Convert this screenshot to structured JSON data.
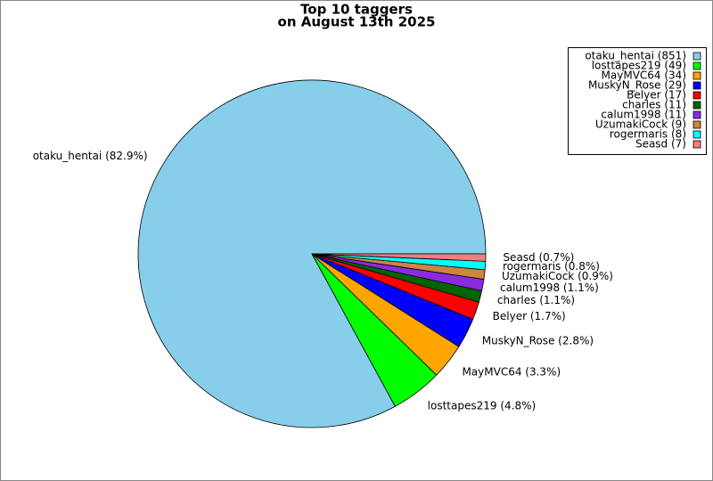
{
  "chart_data": {
    "type": "pie",
    "title": "Top 10 taggers",
    "subtitle": "on August 13th 2025",
    "categories": [
      "otaku_hentai",
      "losttapes219",
      "MayMVC64",
      "MuskyN_Rose",
      "Belyer",
      "charles",
      "calum1998",
      "UzumakiCock",
      "rogermaris",
      "Seasd"
    ],
    "values": [
      851,
      49,
      34,
      29,
      17,
      11,
      11,
      9,
      8,
      7
    ],
    "value_labels": [
      "otaku_hentai (82.9%)",
      "losttapes219 (4.8%)",
      "MayMVC64 (3.3%)",
      "MuskyN_Rose (2.8%)",
      "Belyer (1.7%)",
      "charles (1.1%)",
      "calum1998 (1.1%)",
      "UzumakiCock (0.9%)",
      "rogermaris (0.8%)",
      "Seasd (0.7%)"
    ],
    "legend_labels": [
      "otaku_hentai (851)",
      "losttapes219 (49)",
      "MayMVC64 (34)",
      "MuskyN_Rose (29)",
      "Belyer (17)",
      "charles (11)",
      "calum1998 (11)",
      "UzumakiCock (9)",
      "rogermaris (8)",
      "Seasd (7)"
    ],
    "colors": [
      "#87ceeb",
      "#00ff00",
      "#ffa500",
      "#0000ff",
      "#ff0000",
      "#006400",
      "#8a2be2",
      "#cd853f",
      "#00ffff",
      "#f08080"
    ],
    "legend": "upper right"
  }
}
